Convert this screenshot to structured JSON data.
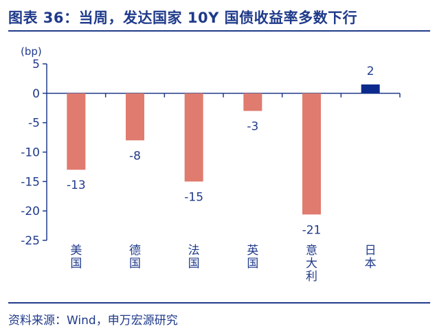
{
  "title": "图表 36：当周，发达国家 10Y 国债收益率多数下行",
  "source": "资料来源：Wind，申万宏源研究",
  "chart_data": {
    "type": "bar",
    "ylabel": "(bp)",
    "ylim": [
      -25,
      5
    ],
    "yticks": [
      5,
      0,
      -5,
      -10,
      -15,
      -20,
      -25
    ],
    "categories": [
      "美国",
      "德国",
      "法国",
      "英国",
      "意大利",
      "日本"
    ],
    "values": [
      -13,
      -8,
      -15,
      -3,
      -20.6,
      1.5
    ],
    "data_labels": [
      "-13",
      "-8",
      "-15",
      "-3",
      "-21",
      "2"
    ],
    "colors": {
      "negative": "#e07b6f",
      "positive": "#0b2a8c",
      "axis": "#1f3a8a",
      "text": "#1f3a8a"
    }
  }
}
